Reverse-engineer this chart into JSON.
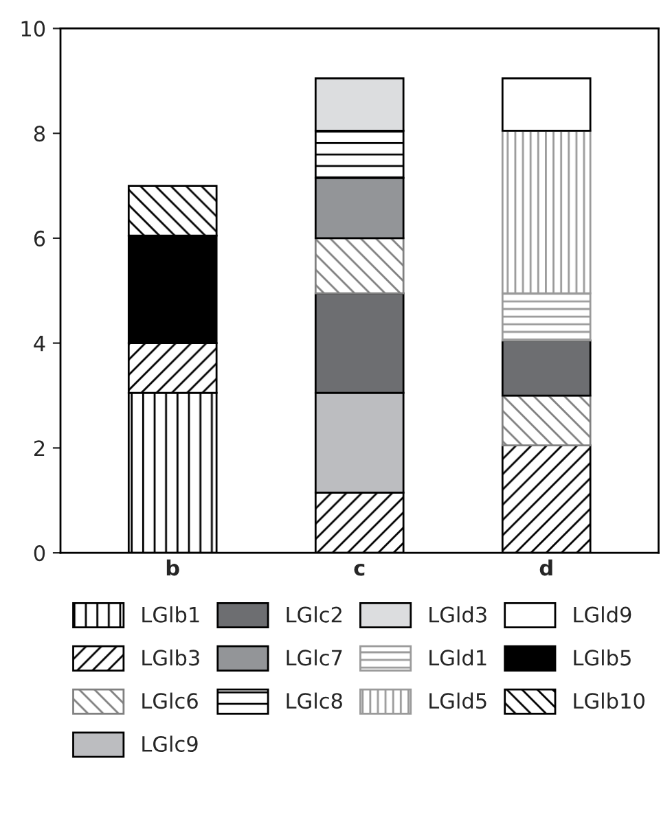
{
  "chart_data": {
    "type": "bar",
    "stacked": true,
    "categories": [
      "b",
      "c",
      "d"
    ],
    "ylim": [
      0,
      10
    ],
    "yticks": [
      0,
      2,
      4,
      6,
      8,
      10
    ],
    "grid": false,
    "legend": "bottom",
    "series": [
      {
        "name": "LGlb1",
        "color": "#000000",
        "values": [
          3.05,
          null,
          null
        ]
      },
      {
        "name": "LGlb3",
        "color": "#000000",
        "values": [
          0.95,
          1.15,
          2.05
        ]
      },
      {
        "name": "LGlc6",
        "color": "#808080",
        "values": [
          null,
          null,
          0.95
        ]
      },
      {
        "name": "LGlc9",
        "color": "#bcbdc0",
        "values": [
          null,
          1.9,
          null
        ]
      },
      {
        "name": "LGlc2",
        "color": "#6d6e71",
        "values": [
          null,
          1.9,
          1.05
        ]
      },
      {
        "color": "#808080",
        "values": [
          null,
          1.05,
          null
        ]
      },
      {
        "name": "LGlc7",
        "color": "#939598",
        "values": [
          null,
          1.15,
          null
        ]
      },
      {
        "name": "LGlc8",
        "color": "#000000",
        "values": [
          null,
          0.9,
          null
        ]
      },
      {
        "name": "LGld3",
        "color": "#dcdddf",
        "values": [
          null,
          1.0,
          null
        ]
      },
      {
        "name": "LGld1",
        "color": "#9a9a9a",
        "values": [
          null,
          null,
          0.9
        ]
      },
      {
        "name": "LGld5",
        "color": "#9a9a9a",
        "values": [
          null,
          null,
          3.1
        ]
      },
      {
        "name": "LGld9",
        "color": "#ffffff",
        "values": [
          null,
          null,
          1.0
        ]
      },
      {
        "name": "LGlb5",
        "color": "#000000",
        "values": [
          2.05,
          null,
          null
        ]
      },
      {
        "name": "LGlb10",
        "color": "#000000",
        "values": [
          0.95,
          null,
          null
        ]
      }
    ]
  }
}
